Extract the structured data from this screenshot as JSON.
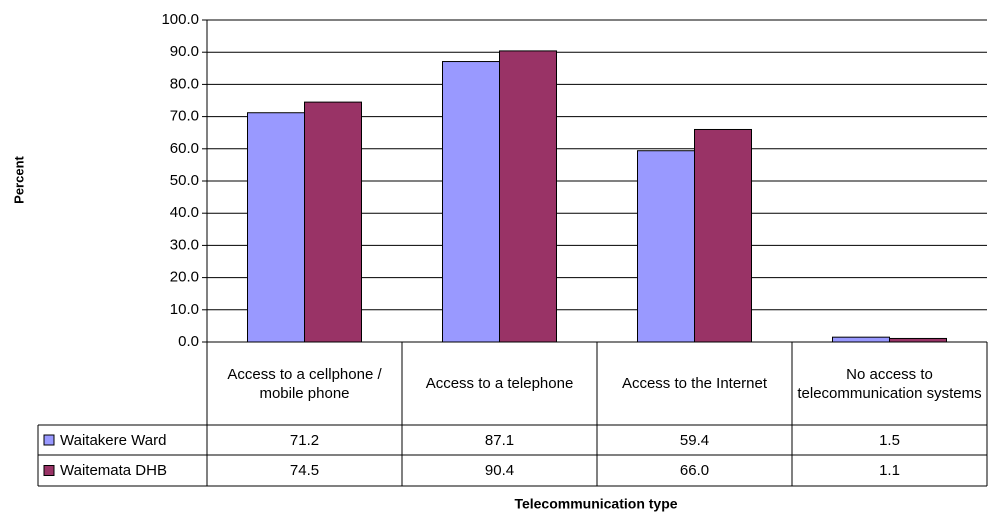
{
  "chart_data": {
    "type": "bar",
    "y_label": "Percent",
    "x_label": "Telecommunication type",
    "categories": [
      "Access to a cellphone / mobile phone",
      "Access to a telephone",
      "Access to the Internet",
      "No access to telecommunication systems"
    ],
    "series": [
      {
        "name": "Waitakere Ward",
        "color": "#9999ff",
        "values": [
          71.2,
          87.1,
          59.4,
          1.5
        ],
        "value_labels": [
          "71.2",
          "87.1",
          "59.4",
          "1.5"
        ]
      },
      {
        "name": "Waitemata DHB",
        "color": "#993366",
        "values": [
          74.5,
          90.4,
          66.0,
          1.1
        ],
        "value_labels": [
          "74.5",
          "90.4",
          "66.0",
          "1.1"
        ]
      }
    ],
    "ylim": [
      0,
      100
    ],
    "yticks": [
      {
        "value": 0,
        "label": "0.0"
      },
      {
        "value": 10,
        "label": "10.0"
      },
      {
        "value": 20,
        "label": "20.0"
      },
      {
        "value": 30,
        "label": "30.0"
      },
      {
        "value": 40,
        "label": "40.0"
      },
      {
        "value": 50,
        "label": "50.0"
      },
      {
        "value": 60,
        "label": "60.0"
      },
      {
        "value": 70,
        "label": "70.0"
      },
      {
        "value": 80,
        "label": "80.0"
      },
      {
        "value": 90,
        "label": "90.0"
      },
      {
        "value": 100,
        "label": "100.0"
      }
    ],
    "grid": true
  }
}
